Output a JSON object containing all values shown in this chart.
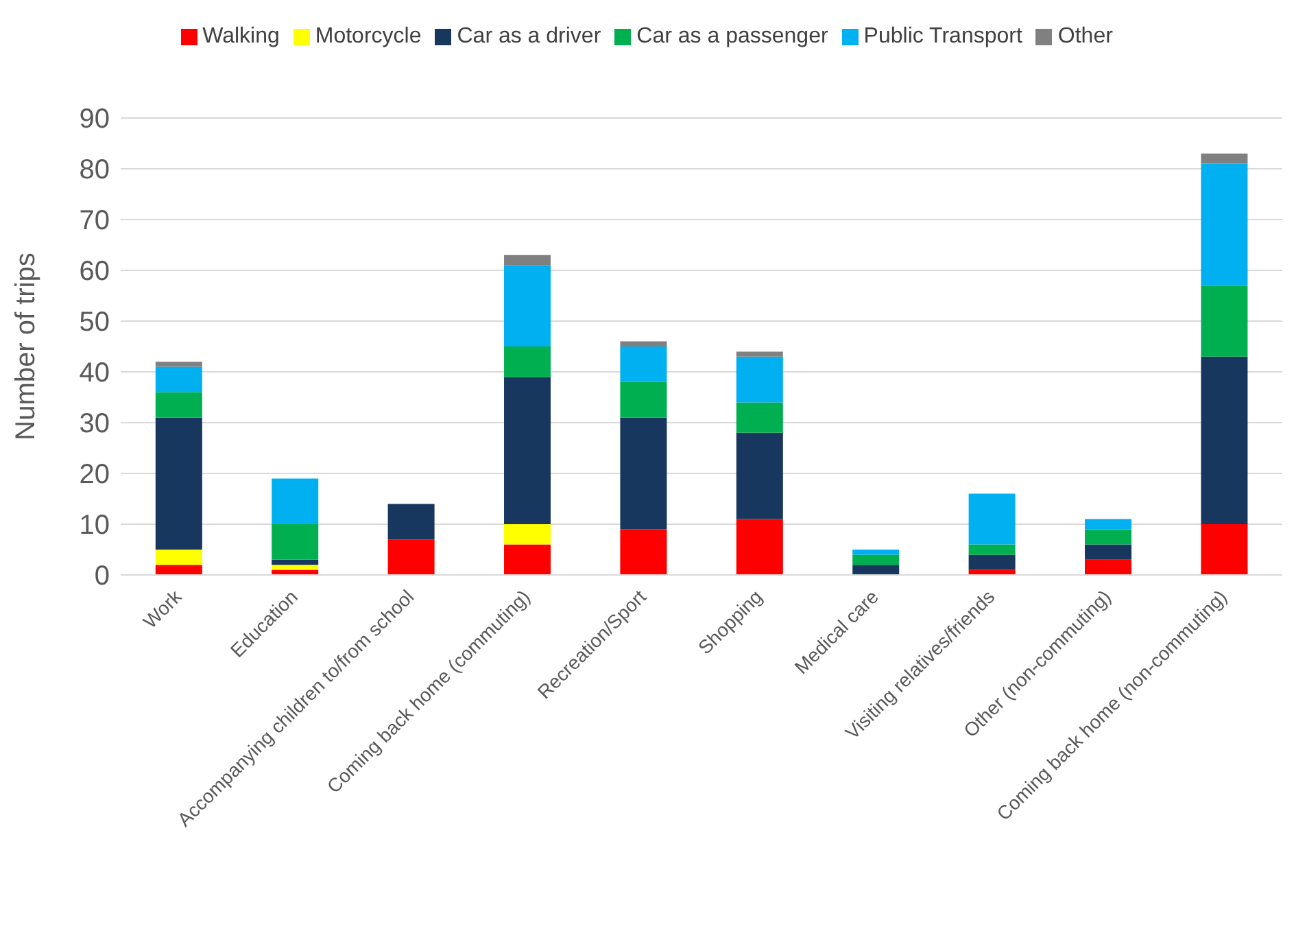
{
  "chart_data": {
    "type": "bar",
    "stacked": true,
    "ylabel": "Number of trips",
    "categories": [
      "Work",
      "Education",
      "Accompanying children to/from school",
      "Coming back home (commuting)",
      "Recreation/Sport",
      "Shopping",
      "Medical care",
      "Visiting relatives/friends",
      "Other (non-commuting)",
      "Coming back home (non-commuting)"
    ],
    "series": [
      {
        "name": "Walking",
        "color": "#ff0000",
        "values": [
          2,
          1,
          7,
          6,
          9,
          11,
          0,
          1,
          3,
          10
        ]
      },
      {
        "name": "Motorcycle",
        "color": "#ffff00",
        "values": [
          3,
          1,
          0,
          4,
          0,
          0,
          0,
          0,
          0,
          0
        ]
      },
      {
        "name": "Car as a driver",
        "color": "#17375e",
        "values": [
          26,
          1,
          7,
          29,
          22,
          17,
          2,
          3,
          3,
          33
        ]
      },
      {
        "name": "Car as a passenger",
        "color": "#00b050",
        "values": [
          5,
          7,
          0,
          6,
          7,
          6,
          2,
          2,
          3,
          14
        ]
      },
      {
        "name": "Public Transport",
        "color": "#00b0f0",
        "values": [
          5,
          9,
          0,
          16,
          7,
          9,
          1,
          10,
          2,
          24
        ]
      },
      {
        "name": "Other",
        "color": "#808080",
        "values": [
          1,
          0,
          0,
          2,
          1,
          1,
          0,
          0,
          0,
          2
        ]
      }
    ],
    "ylim": [
      0,
      90
    ],
    "yticks": [
      0,
      10,
      20,
      30,
      40,
      50,
      60,
      70,
      80,
      90
    ],
    "grid": "y",
    "legend": "top"
  }
}
